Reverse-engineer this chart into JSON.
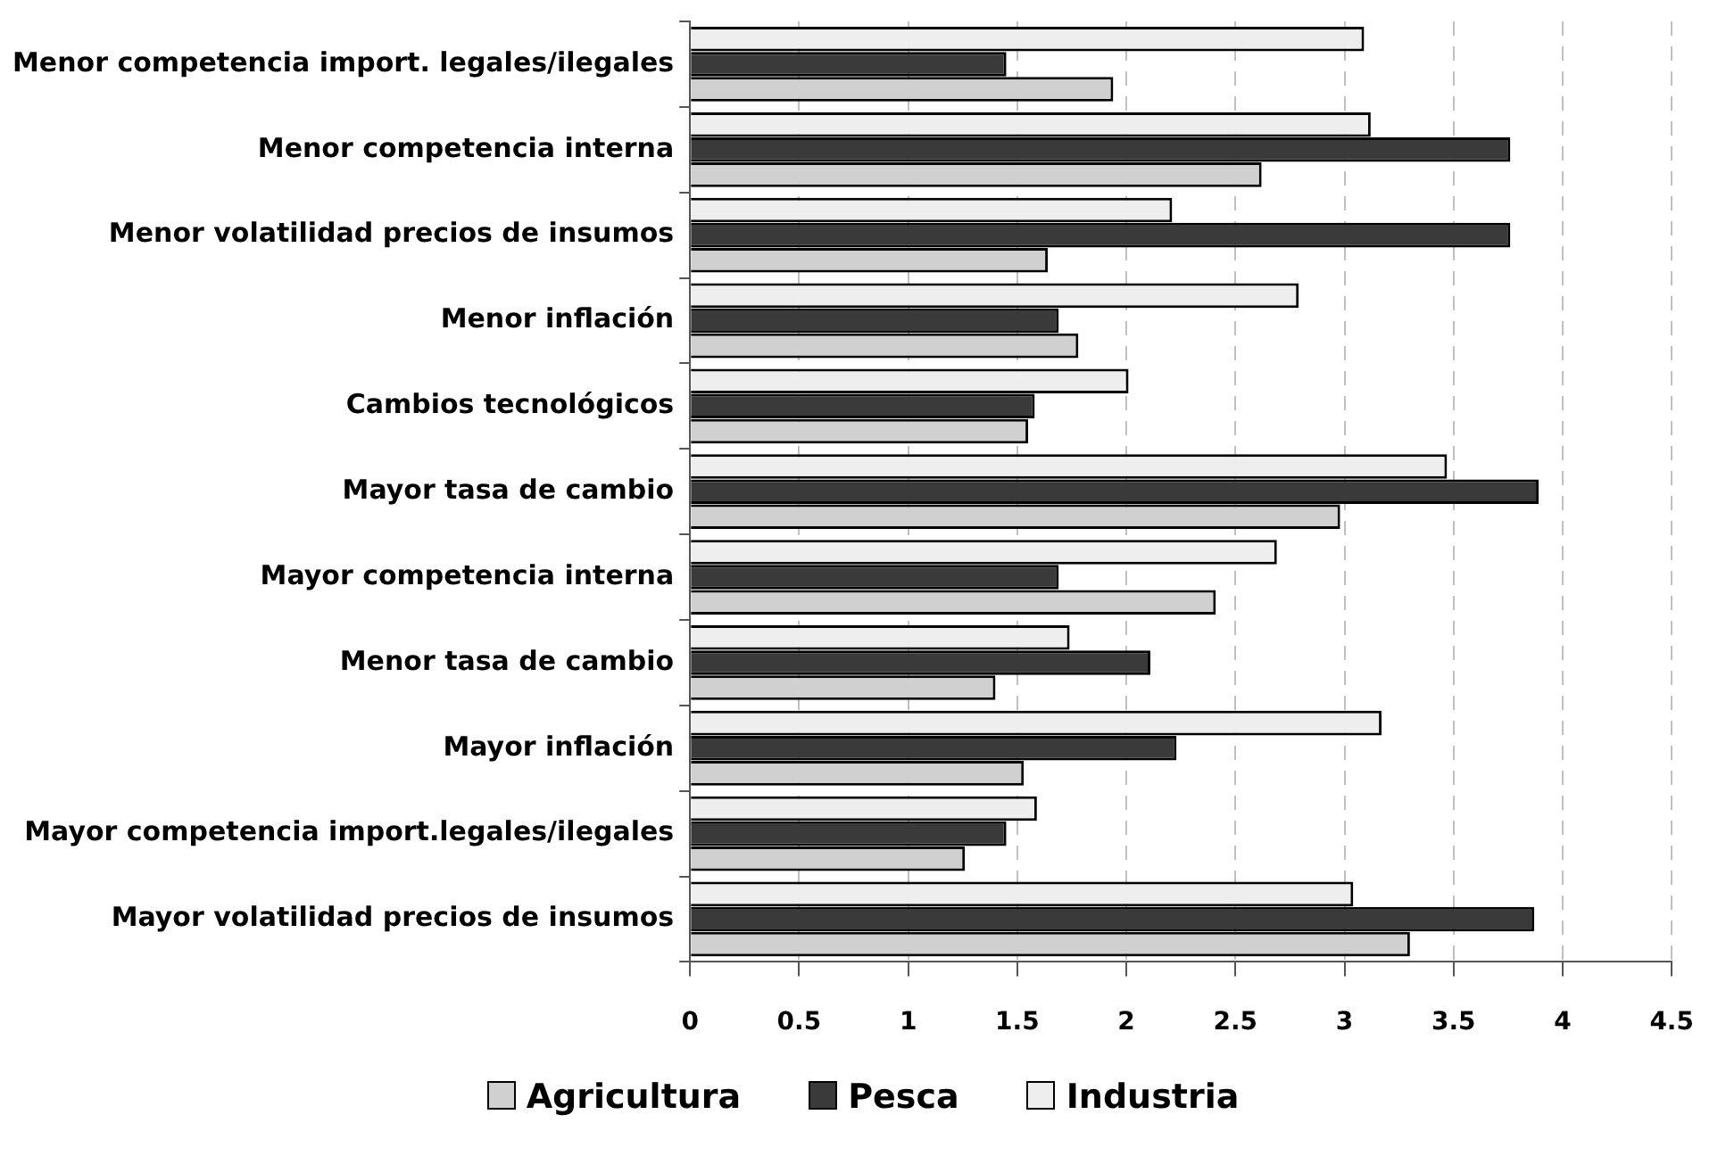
{
  "chart_data": {
    "type": "bar",
    "orientation": "horizontal",
    "categories": [
      "Menor competencia import. legales/ilegales",
      "Menor competencia interna",
      "Menor volatilidad precios de insumos",
      "Menor inflación",
      "Cambios tecnológicos",
      "Mayor tasa de cambio",
      "Mayor competencia interna",
      "Menor tasa de cambio",
      "Mayor inflación",
      "Mayor competencia import.legales/ilegales",
      "Mayor volatilidad precios de insumos"
    ],
    "series": [
      {
        "name": "Agricultura",
        "color": "#d0d0d0",
        "values": [
          1.94,
          2.62,
          1.64,
          1.78,
          1.55,
          2.98,
          2.41,
          1.4,
          1.53,
          1.26,
          3.3
        ]
      },
      {
        "name": "Pesca",
        "color": "#3a3a3a",
        "values": [
          1.45,
          3.76,
          3.76,
          1.69,
          1.58,
          3.89,
          1.69,
          2.11,
          2.23,
          1.45,
          3.87
        ]
      },
      {
        "name": "Industria",
        "color": "#eeeeee",
        "values": [
          3.09,
          3.12,
          2.21,
          2.79,
          2.01,
          3.47,
          2.69,
          1.74,
          3.17,
          1.59,
          3.04
        ]
      }
    ],
    "xlim": [
      0,
      4.5
    ],
    "xticks": [
      0,
      0.5,
      1,
      1.5,
      2,
      2.5,
      3,
      3.5,
      4,
      4.5
    ],
    "grid": "x",
    "legend": "bottom"
  }
}
